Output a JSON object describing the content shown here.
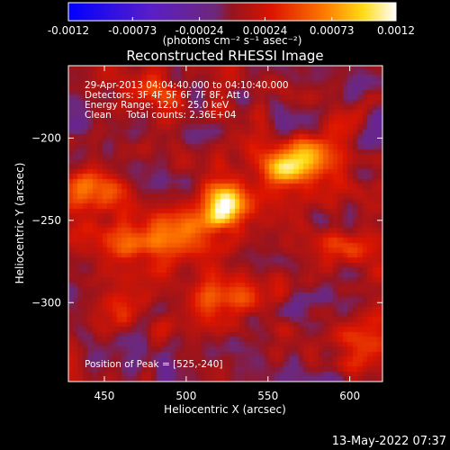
{
  "chart_data": {
    "type": "heatmap",
    "title": "Reconstructed RHESSI Image",
    "xlabel": "Heliocentric X (arcsec)",
    "ylabel": "Heliocentric Y (arcsec)",
    "xlim": [
      428,
      620
    ],
    "ylim": [
      -348,
      -156
    ],
    "x_ticks": [
      450,
      500,
      550,
      600
    ],
    "y_ticks": [
      -200,
      -250,
      -300
    ],
    "colorbar": {
      "ticks": [
        -0.0012,
        -0.00073,
        -0.00024,
        0.00024,
        0.00073,
        0.0012
      ],
      "tick_labels": [
        "-0.0012",
        "-0.00073",
        "-0.00024",
        "0.00024",
        "0.00073",
        "0.0012"
      ],
      "unit_label": "(photons cm⁻² s⁻¹ asec⁻²)",
      "range": [
        -0.0012,
        0.0012
      ]
    },
    "peak": {
      "x": 525,
      "y": -240
    },
    "sources": [
      {
        "x": 525,
        "y": -240,
        "amp": 0.00115,
        "sx": 11,
        "sy": 9
      },
      {
        "x": 560,
        "y": -220,
        "amp": 0.0008,
        "sx": 12,
        "sy": 8
      },
      {
        "x": 578,
        "y": -210,
        "amp": 0.00055,
        "sx": 14,
        "sy": 10
      },
      {
        "x": 500,
        "y": -258,
        "amp": 0.00055,
        "sx": 16,
        "sy": 10
      },
      {
        "x": 470,
        "y": -262,
        "amp": 0.00045,
        "sx": 20,
        "sy": 12
      },
      {
        "x": 445,
        "y": -228,
        "amp": 0.0004,
        "sx": 14,
        "sy": 12
      },
      {
        "x": 460,
        "y": -300,
        "amp": 0.00045,
        "sx": 12,
        "sy": 10
      },
      {
        "x": 520,
        "y": -300,
        "amp": 0.00035,
        "sx": 14,
        "sy": 10
      },
      {
        "x": 600,
        "y": -262,
        "amp": 0.0004,
        "sx": 14,
        "sy": 14
      },
      {
        "x": 610,
        "y": -322,
        "amp": 0.00035,
        "sx": 10,
        "sy": 10
      },
      {
        "x": 480,
        "y": -175,
        "amp": 0.0002,
        "sx": 18,
        "sy": 10
      },
      {
        "x": 540,
        "y": -290,
        "amp": 0.0003,
        "sx": 14,
        "sy": 8
      }
    ]
  },
  "info": {
    "line1": "29-Apr-2013 04:04:40.000 to 04:10:40.000",
    "line2": "Detectors: 3F 4F 5F 6F 7F 8F, Att 0",
    "line3": "Energy Range: 12.0 - 25.0 keV",
    "line4": "Clean     Total counts: 2.36E+04",
    "peak_text": "Position of Peak = [525,-240]"
  },
  "footer": {
    "timestamp": "13-May-2022 07:37"
  }
}
